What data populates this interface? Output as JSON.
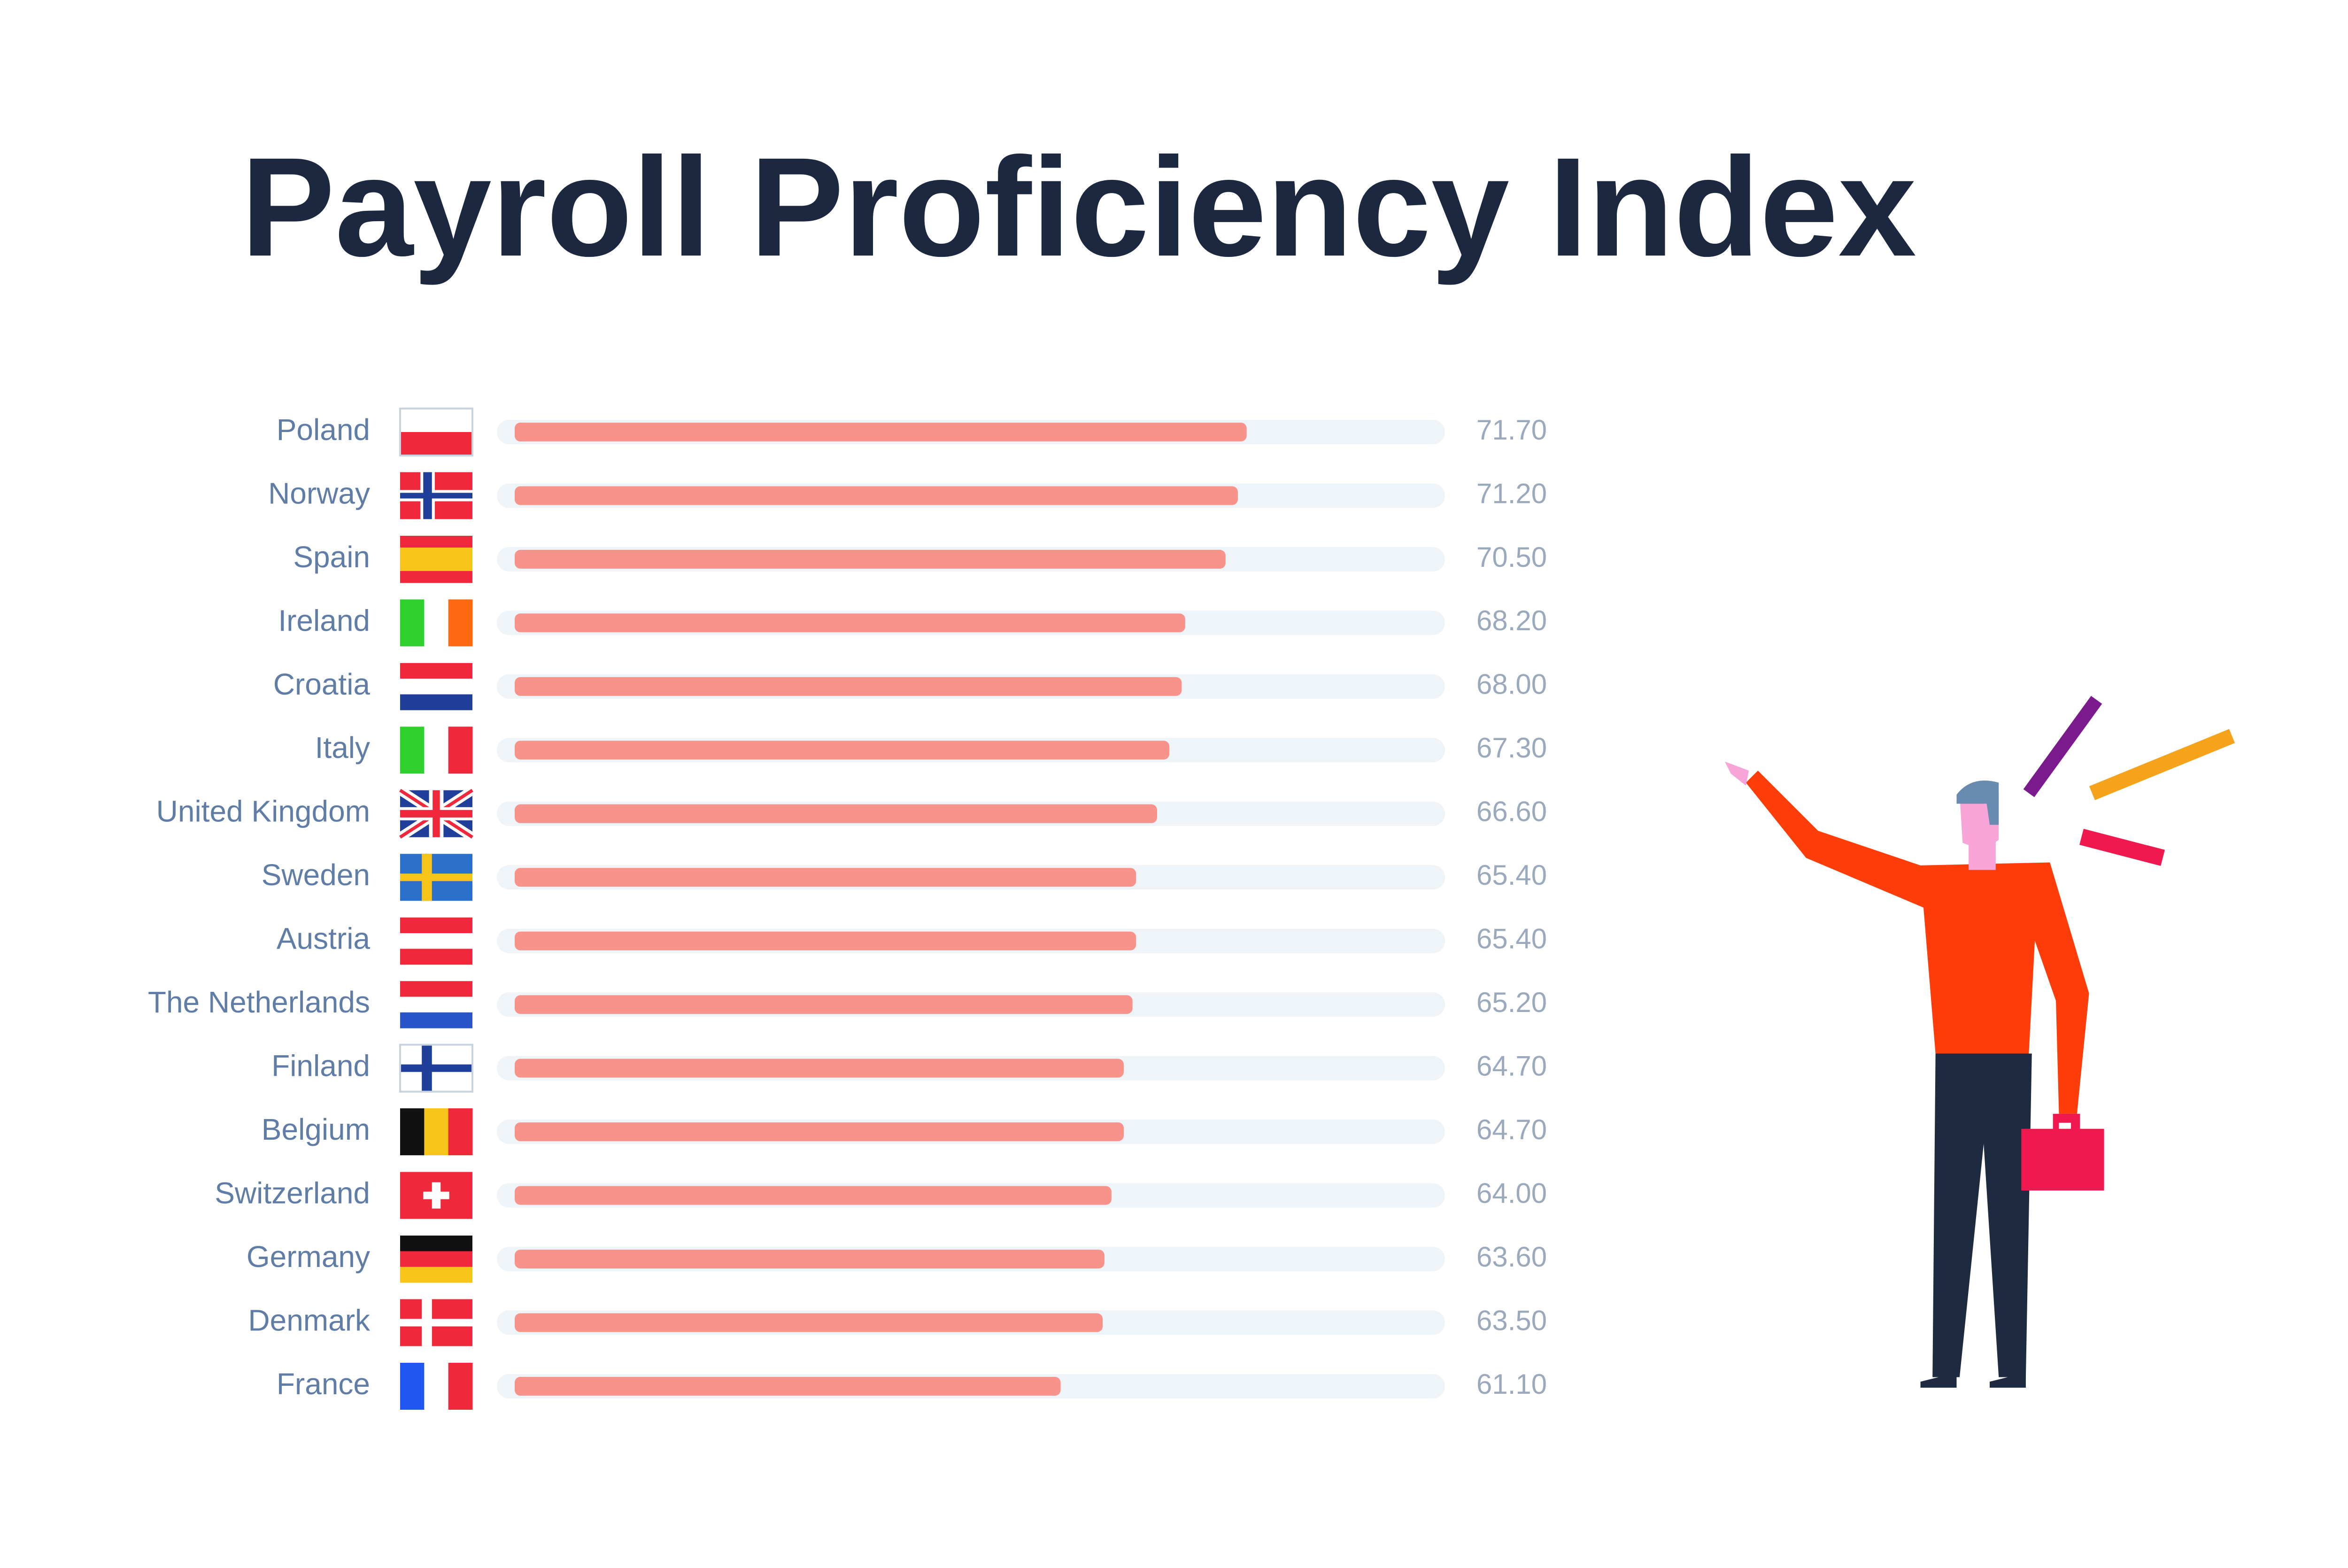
{
  "chart_data": {
    "type": "bar",
    "orientation": "horizontal",
    "title": "Payroll Proficiency Index",
    "categories": [
      "Poland",
      "Norway",
      "Spain",
      "Ireland",
      "Croatia",
      "Italy",
      "United Kingdom",
      "Sweden",
      "Austria",
      "The Netherlands",
      "Finland",
      "Belgium",
      "Switzerland",
      "Germany",
      "Denmark",
      "France"
    ],
    "values": [
      71.7,
      71.2,
      70.5,
      68.2,
      68.0,
      67.3,
      66.6,
      65.4,
      65.4,
      65.2,
      64.7,
      64.7,
      64.0,
      63.6,
      63.5,
      61.1
    ],
    "value_labels": [
      "71.70",
      "71.20",
      "70.50",
      "68.20",
      "68.00",
      "67.30",
      "66.60",
      "65.40",
      "65.40",
      "65.20",
      "64.70",
      "64.70",
      "64.00",
      "63.60",
      "63.50",
      "61.10"
    ],
    "color": "#f7938a",
    "track_color": "#eef4f7",
    "xlim": [
      30,
      83
    ]
  }
}
